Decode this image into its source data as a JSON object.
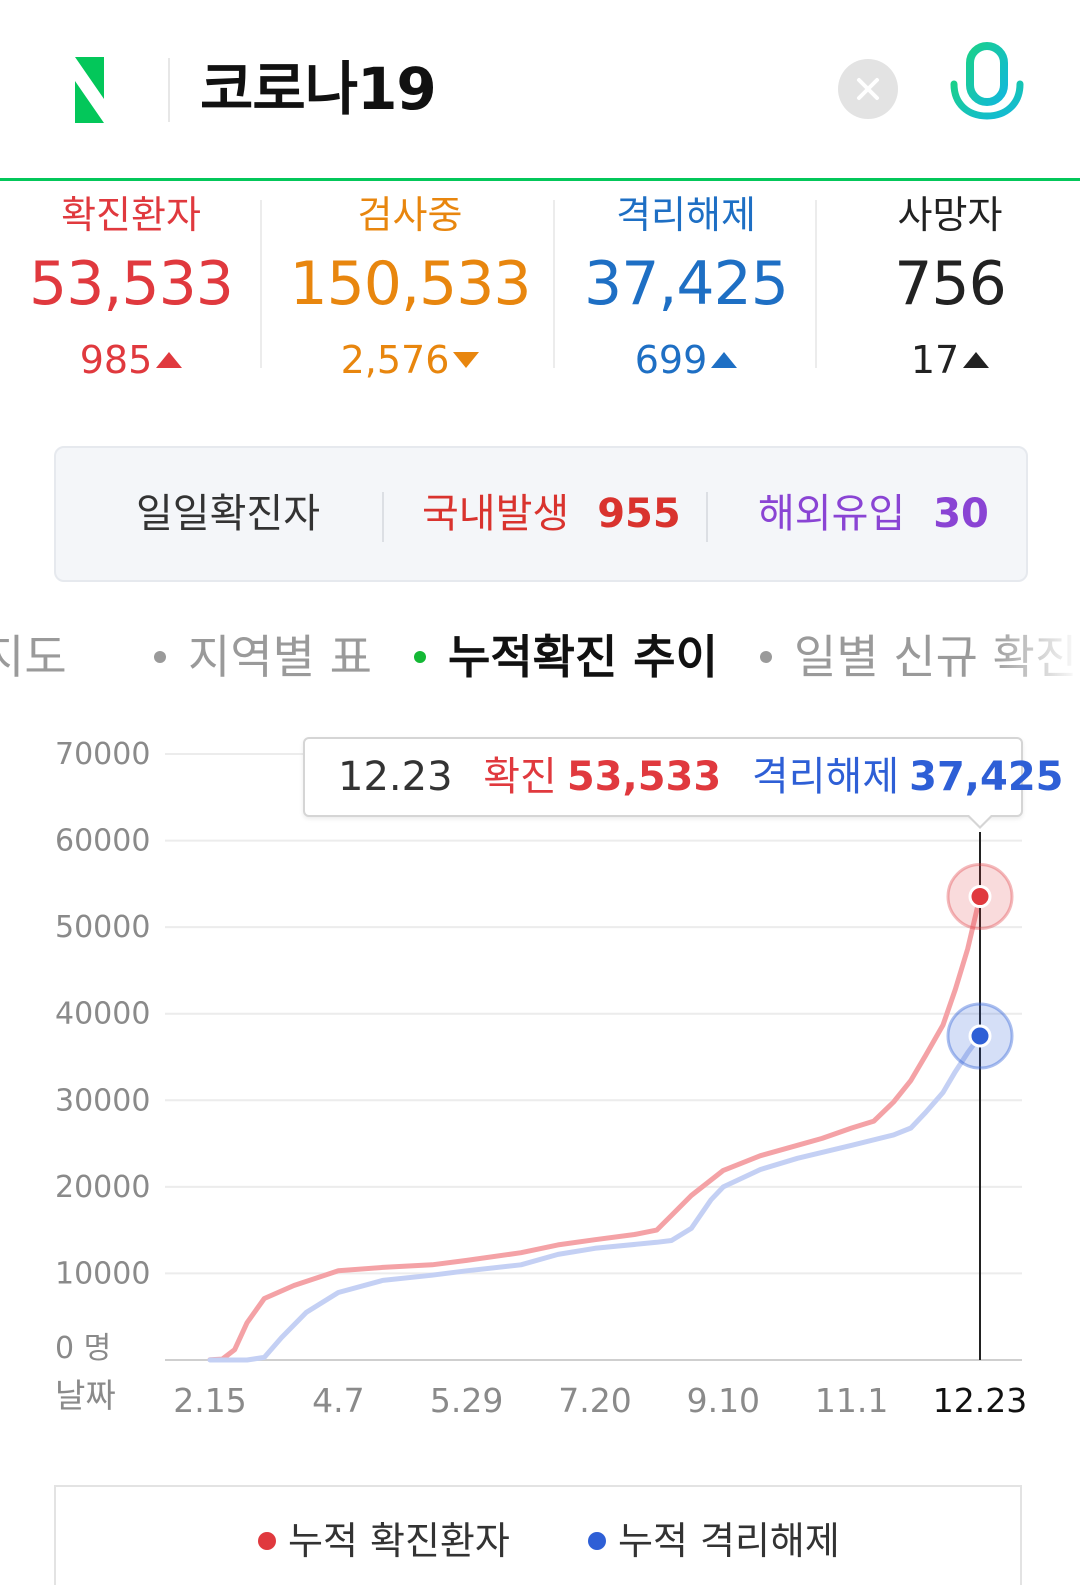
{
  "header": {
    "logo_letter": "N",
    "query": "코로나19",
    "clear_icon": "close-icon",
    "mic_icon": "microphone-icon",
    "brand_color": "#03c75a"
  },
  "stats": [
    {
      "label": "확진환자",
      "value": "53,533",
      "delta": "985",
      "direction": "up",
      "color": "#e0393e"
    },
    {
      "label": "검사중",
      "value": "150,533",
      "delta": "2,576",
      "direction": "down",
      "color": "#e8860e"
    },
    {
      "label": "격리해제",
      "value": "37,425",
      "delta": "699",
      "direction": "up",
      "color": "#1e6fc4"
    },
    {
      "label": "사망자",
      "value": "756",
      "delta": "17",
      "direction": "up",
      "color": "#222222"
    }
  ],
  "daily": {
    "label": "일일확진자",
    "domestic_label": "국내발생",
    "domestic_value": "955",
    "overseas_label": "해외유입",
    "overseas_value": "30"
  },
  "tabs": [
    {
      "label": "지도",
      "active": false
    },
    {
      "label": "지역별 표",
      "active": false
    },
    {
      "label": "누적확진 추이",
      "active": true
    },
    {
      "label": "일별 신규 확진",
      "active": false
    }
  ],
  "tooltip": {
    "date": "12.23",
    "confirmed_label": "확진",
    "confirmed_value": "53,533",
    "released_label": "격리해제",
    "released_value": "37,425"
  },
  "chart_data": {
    "type": "line",
    "y_ticks": [
      "70000",
      "60000",
      "50000",
      "40000",
      "30000",
      "20000",
      "10000",
      "0 명"
    ],
    "y_range": [
      0,
      70000
    ],
    "x_axis_label": "날짜",
    "x_ticks": [
      "2.15",
      "4.7",
      "5.29",
      "7.20",
      "9.10",
      "11.1",
      "12.23"
    ],
    "grid": true,
    "series": [
      {
        "name": "누적 확진환자",
        "color": "#f4a2a6",
        "marker_color": "#e0393e",
        "x": [
          "2.15",
          "2.20",
          "2.25",
          "3.1",
          "3.8",
          "3.20",
          "4.7",
          "4.25",
          "5.15",
          "5.29",
          "6.20",
          "7.5",
          "7.20",
          "8.5",
          "8.14",
          "8.20",
          "8.28",
          "9.10",
          "9.25",
          "10.10",
          "10.20",
          "11.1",
          "11.10",
          "11.18",
          "11.25",
          "12.1",
          "12.8",
          "12.13",
          "12.18",
          "12.23"
        ],
        "values": [
          30,
          100,
          1200,
          4300,
          7100,
          8600,
          10300,
          10700,
          11000,
          11500,
          12400,
          13300,
          13900,
          14500,
          15000,
          16700,
          19000,
          21900,
          23600,
          24800,
          25600,
          26800,
          27600,
          29800,
          32300,
          35200,
          38700,
          42800,
          47500,
          53533
        ]
      },
      {
        "name": "누적 격리해제",
        "color": "#c4d0f4",
        "marker_color": "#2e5fd6",
        "x": [
          "2.15",
          "3.1",
          "3.8",
          "3.15",
          "3.25",
          "4.7",
          "4.25",
          "5.15",
          "5.29",
          "6.20",
          "7.5",
          "7.20",
          "8.14",
          "8.20",
          "8.28",
          "9.5",
          "9.10",
          "9.25",
          "10.10",
          "11.1",
          "11.18",
          "11.25",
          "12.1",
          "12.8",
          "12.13",
          "12.18",
          "12.23"
        ],
        "values": [
          0,
          0,
          300,
          2600,
          5500,
          7800,
          9200,
          9800,
          10300,
          11000,
          12200,
          12900,
          13600,
          13800,
          15200,
          18500,
          20000,
          22000,
          23300,
          24800,
          26000,
          26800,
          28600,
          30900,
          33300,
          35500,
          37425
        ]
      }
    ]
  },
  "legend": [
    {
      "label": "누적 확진환자",
      "color": "#e0393e"
    },
    {
      "label": "누적 격리해제",
      "color": "#2e5fd6"
    }
  ]
}
